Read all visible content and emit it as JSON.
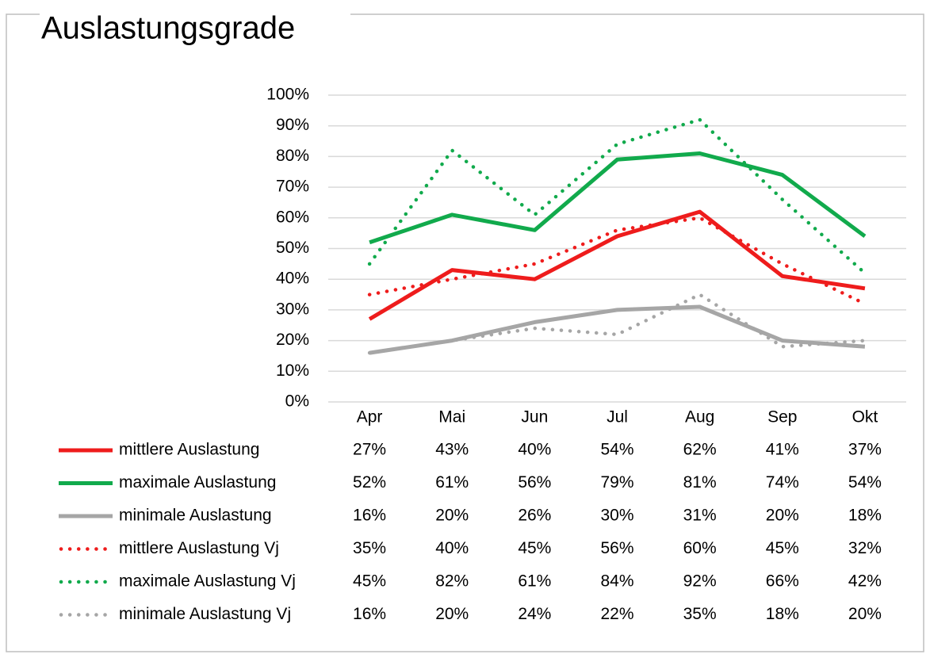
{
  "chart_data": {
    "type": "line",
    "title": "Auslastungsgrade",
    "categories": [
      "Apr",
      "Mai",
      "Jun",
      "Jul",
      "Aug",
      "Sep",
      "Okt"
    ],
    "ylim": [
      0,
      100
    ],
    "y_ticks": [
      0,
      10,
      20,
      30,
      40,
      50,
      60,
      70,
      80,
      90,
      100
    ],
    "y_tick_labels": [
      "0%",
      "10%",
      "20%",
      "30%",
      "40%",
      "50%",
      "60%",
      "70%",
      "80%",
      "90%",
      "100%"
    ],
    "grid": true,
    "legend": "bottom data table",
    "series": [
      {
        "name": "mittlere Auslastung",
        "color": "#ee1c1c",
        "style": "solid",
        "values": [
          27,
          43,
          40,
          54,
          62,
          41,
          37
        ],
        "labels": [
          "27%",
          "43%",
          "40%",
          "54%",
          "62%",
          "41%",
          "37%"
        ]
      },
      {
        "name": "maximale Auslastung",
        "color": "#11aa4c",
        "style": "solid",
        "values": [
          52,
          61,
          56,
          79,
          81,
          74,
          54
        ],
        "labels": [
          "52%",
          "61%",
          "56%",
          "79%",
          "81%",
          "74%",
          "54%"
        ]
      },
      {
        "name": "minimale Auslastung",
        "color": "#a6a6a6",
        "style": "solid",
        "values": [
          16,
          20,
          26,
          30,
          31,
          20,
          18
        ],
        "labels": [
          "16%",
          "20%",
          "26%",
          "30%",
          "31%",
          "20%",
          "18%"
        ]
      },
      {
        "name": "mittlere Auslastung Vj",
        "color": "#ee1c1c",
        "style": "dotted",
        "values": [
          35,
          40,
          45,
          56,
          60,
          45,
          32
        ],
        "labels": [
          "35%",
          "40%",
          "45%",
          "56%",
          "60%",
          "45%",
          "32%"
        ]
      },
      {
        "name": "maximale Auslastung Vj",
        "color": "#11aa4c",
        "style": "dotted",
        "values": [
          45,
          82,
          61,
          84,
          92,
          66,
          42
        ],
        "labels": [
          "45%",
          "82%",
          "61%",
          "84%",
          "92%",
          "66%",
          "42%"
        ]
      },
      {
        "name": "minimale Auslastung Vj",
        "color": "#a6a6a6",
        "style": "dotted",
        "values": [
          16,
          20,
          24,
          22,
          35,
          18,
          20
        ],
        "labels": [
          "16%",
          "20%",
          "24%",
          "22%",
          "35%",
          "18%",
          "20%"
        ]
      }
    ]
  }
}
